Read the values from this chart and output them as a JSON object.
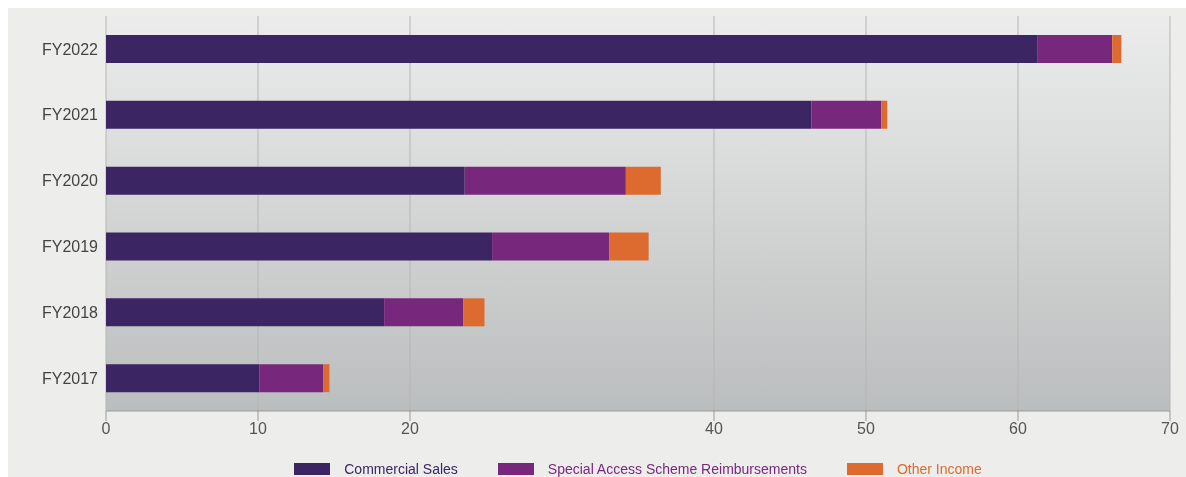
{
  "chart_data": {
    "type": "bar",
    "orientation": "horizontal",
    "stacked": true,
    "categories": [
      "FY2022",
      "FY2021",
      "FY2020",
      "FY2019",
      "FY2018",
      "FY2017"
    ],
    "series": [
      {
        "name": "Commercial Sales",
        "color": "#3b2563",
        "values": [
          61.3,
          46.4,
          23.6,
          25.4,
          18.3,
          10.1
        ]
      },
      {
        "name": "Special Access Scheme Reimbursements",
        "color": "#77287c",
        "values": [
          4.9,
          4.6,
          10.6,
          7.7,
          5.2,
          4.2
        ]
      },
      {
        "name": "Other Income",
        "color": "#dd6a2e",
        "values": [
          0.6,
          0.4,
          2.3,
          2.6,
          1.4,
          0.4
        ]
      }
    ],
    "xlim": [
      0,
      70
    ],
    "xticks": [
      0,
      10,
      20,
      40,
      50,
      60,
      70
    ],
    "grid": "x",
    "legend": "bottom"
  }
}
